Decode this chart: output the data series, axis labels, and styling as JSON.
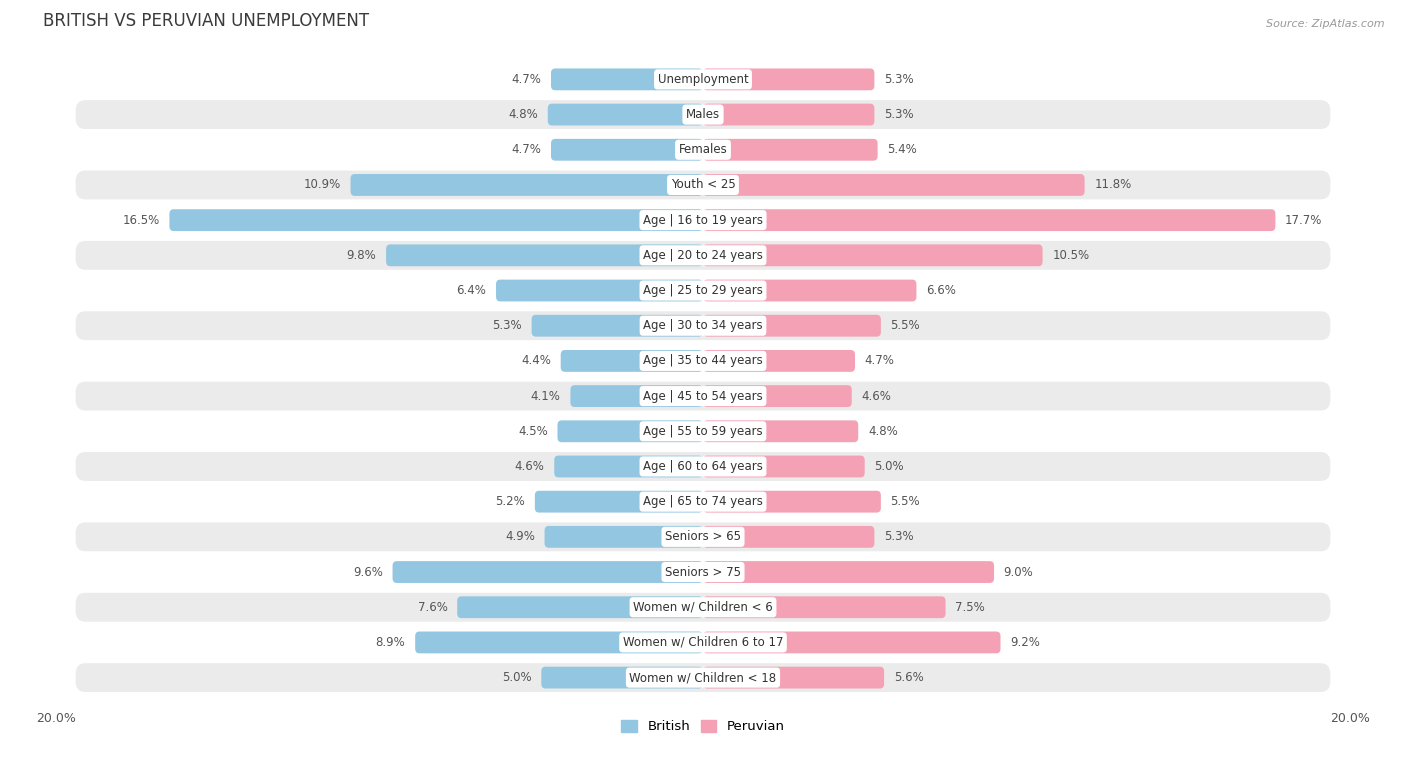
{
  "title": "BRITISH VS PERUVIAN UNEMPLOYMENT",
  "source": "Source: ZipAtlas.com",
  "categories": [
    "Unemployment",
    "Males",
    "Females",
    "Youth < 25",
    "Age | 16 to 19 years",
    "Age | 20 to 24 years",
    "Age | 25 to 29 years",
    "Age | 30 to 34 years",
    "Age | 35 to 44 years",
    "Age | 45 to 54 years",
    "Age | 55 to 59 years",
    "Age | 60 to 64 years",
    "Age | 65 to 74 years",
    "Seniors > 65",
    "Seniors > 75",
    "Women w/ Children < 6",
    "Women w/ Children 6 to 17",
    "Women w/ Children < 18"
  ],
  "british": [
    4.7,
    4.8,
    4.7,
    10.9,
    16.5,
    9.8,
    6.4,
    5.3,
    4.4,
    4.1,
    4.5,
    4.6,
    5.2,
    4.9,
    9.6,
    7.6,
    8.9,
    5.0
  ],
  "peruvian": [
    5.3,
    5.3,
    5.4,
    11.8,
    17.7,
    10.5,
    6.6,
    5.5,
    4.7,
    4.6,
    4.8,
    5.0,
    5.5,
    5.3,
    9.0,
    7.5,
    9.2,
    5.6
  ],
  "british_color": "#93c6e0",
  "peruvian_color": "#f4a0b5",
  "bar_height": 0.62,
  "xlim": 20.0,
  "row_colors": [
    "#ffffff",
    "#ebebeb"
  ],
  "label_fontsize": 8.5,
  "title_fontsize": 12,
  "legend_british": "British",
  "legend_peruvian": "Peruvian",
  "fig_bg": "#ffffff",
  "value_color": "#555555"
}
